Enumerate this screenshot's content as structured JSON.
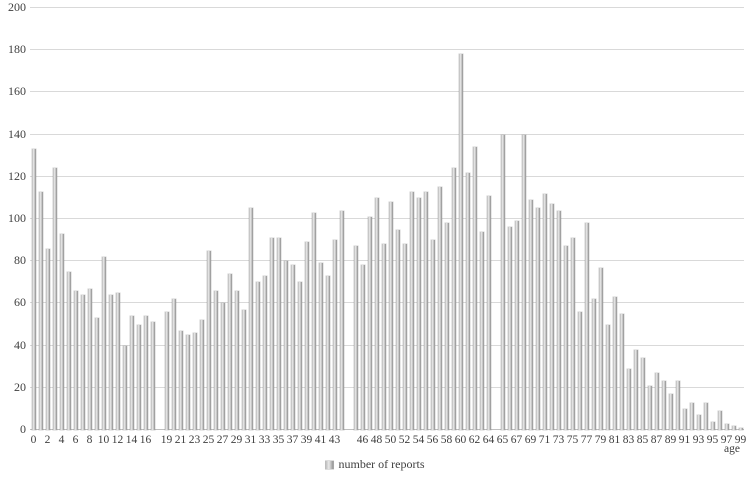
{
  "chart_data": {
    "type": "bar",
    "title": "",
    "xlabel": "age",
    "ylabel": "",
    "legend": [
      "number of reports"
    ],
    "legend_position": "bottom-center",
    "grid": true,
    "ylim": [
      0,
      200
    ],
    "y_ticks": [
      0,
      20,
      40,
      60,
      80,
      100,
      120,
      140,
      160,
      180,
      200
    ],
    "note": "items are [age, value, axis_label]; null items are empty gap positions in the category axis",
    "items": [
      [
        0,
        133,
        "0"
      ],
      [
        1,
        113,
        ""
      ],
      [
        2,
        86,
        "2"
      ],
      [
        3,
        124,
        ""
      ],
      [
        4,
        93,
        "4"
      ],
      [
        5,
        75,
        ""
      ],
      [
        6,
        66,
        "6"
      ],
      [
        7,
        64,
        ""
      ],
      [
        8,
        67,
        "8"
      ],
      [
        9,
        53,
        ""
      ],
      [
        10,
        82,
        "10"
      ],
      [
        11,
        64,
        ""
      ],
      [
        12,
        65,
        "12"
      ],
      [
        13,
        40,
        ""
      ],
      [
        14,
        54,
        "14"
      ],
      [
        15,
        50,
        ""
      ],
      [
        16,
        54,
        "16"
      ],
      [
        17,
        51,
        ""
      ],
      [
        null,
        null,
        ""
      ],
      [
        19,
        56,
        "19"
      ],
      [
        20,
        62,
        ""
      ],
      [
        21,
        47,
        "21"
      ],
      [
        22,
        45,
        ""
      ],
      [
        23,
        46,
        "23"
      ],
      [
        24,
        52,
        ""
      ],
      [
        25,
        85,
        "25"
      ],
      [
        26,
        66,
        ""
      ],
      [
        27,
        60,
        "27"
      ],
      [
        28,
        74,
        ""
      ],
      [
        29,
        66,
        "29"
      ],
      [
        30,
        57,
        ""
      ],
      [
        31,
        105,
        "31"
      ],
      [
        32,
        70,
        ""
      ],
      [
        33,
        73,
        "33"
      ],
      [
        34,
        91,
        ""
      ],
      [
        35,
        91,
        "35"
      ],
      [
        36,
        80,
        ""
      ],
      [
        37,
        78,
        "37"
      ],
      [
        38,
        70,
        ""
      ],
      [
        39,
        89,
        "39"
      ],
      [
        40,
        103,
        ""
      ],
      [
        41,
        79,
        "41"
      ],
      [
        42,
        73,
        ""
      ],
      [
        43,
        90,
        "43"
      ],
      [
        44,
        104,
        ""
      ],
      [
        null,
        null,
        ""
      ],
      [
        45,
        87,
        ""
      ],
      [
        46,
        78,
        "46"
      ],
      [
        47,
        101,
        ""
      ],
      [
        48,
        110,
        "48"
      ],
      [
        49,
        88,
        ""
      ],
      [
        50,
        108,
        "50"
      ],
      [
        51,
        95,
        ""
      ],
      [
        52,
        88,
        "52"
      ],
      [
        53,
        113,
        ""
      ],
      [
        54,
        110,
        "54"
      ],
      [
        55,
        113,
        ""
      ],
      [
        56,
        90,
        "56"
      ],
      [
        57,
        115,
        ""
      ],
      [
        58,
        98,
        "58"
      ],
      [
        59,
        124,
        ""
      ],
      [
        60,
        178,
        "60"
      ],
      [
        61,
        122,
        ""
      ],
      [
        62,
        134,
        "62"
      ],
      [
        63,
        94,
        ""
      ],
      [
        64,
        111,
        "64"
      ],
      [
        null,
        null,
        ""
      ],
      [
        65,
        140,
        "65"
      ],
      [
        66,
        96,
        ""
      ],
      [
        67,
        99,
        "67"
      ],
      [
        68,
        140,
        ""
      ],
      [
        69,
        109,
        "69"
      ],
      [
        70,
        105,
        ""
      ],
      [
        71,
        112,
        "71"
      ],
      [
        72,
        107,
        ""
      ],
      [
        73,
        104,
        "73"
      ],
      [
        74,
        87,
        ""
      ],
      [
        75,
        91,
        "75"
      ],
      [
        76,
        56,
        ""
      ],
      [
        77,
        98,
        "77"
      ],
      [
        78,
        62,
        ""
      ],
      [
        79,
        77,
        "79"
      ],
      [
        80,
        50,
        ""
      ],
      [
        81,
        63,
        "81"
      ],
      [
        82,
        55,
        ""
      ],
      [
        83,
        29,
        "83"
      ],
      [
        84,
        38,
        ""
      ],
      [
        85,
        34,
        "85"
      ],
      [
        86,
        21,
        ""
      ],
      [
        87,
        27,
        "87"
      ],
      [
        88,
        23,
        ""
      ],
      [
        89,
        17,
        "89"
      ],
      [
        90,
        23,
        ""
      ],
      [
        91,
        10,
        "91"
      ],
      [
        92,
        13,
        ""
      ],
      [
        93,
        7,
        "93"
      ],
      [
        94,
        13,
        ""
      ],
      [
        95,
        4,
        "95"
      ],
      [
        96,
        9,
        ""
      ],
      [
        97,
        3,
        "97"
      ],
      [
        98,
        2,
        ""
      ],
      [
        99,
        1,
        "99"
      ]
    ],
    "colors": {
      "bar_light": "#e9e9e9",
      "bar_mid": "#b9b9b9",
      "bar_dark": "#8d8d8d",
      "gridline": "#d9d9d9",
      "axis": "#bfbfbf",
      "text": "#3f3f3f",
      "background": "#ffffff"
    }
  },
  "legend": {
    "series_label": "number of reports"
  },
  "axes": {
    "x_title": "age"
  }
}
